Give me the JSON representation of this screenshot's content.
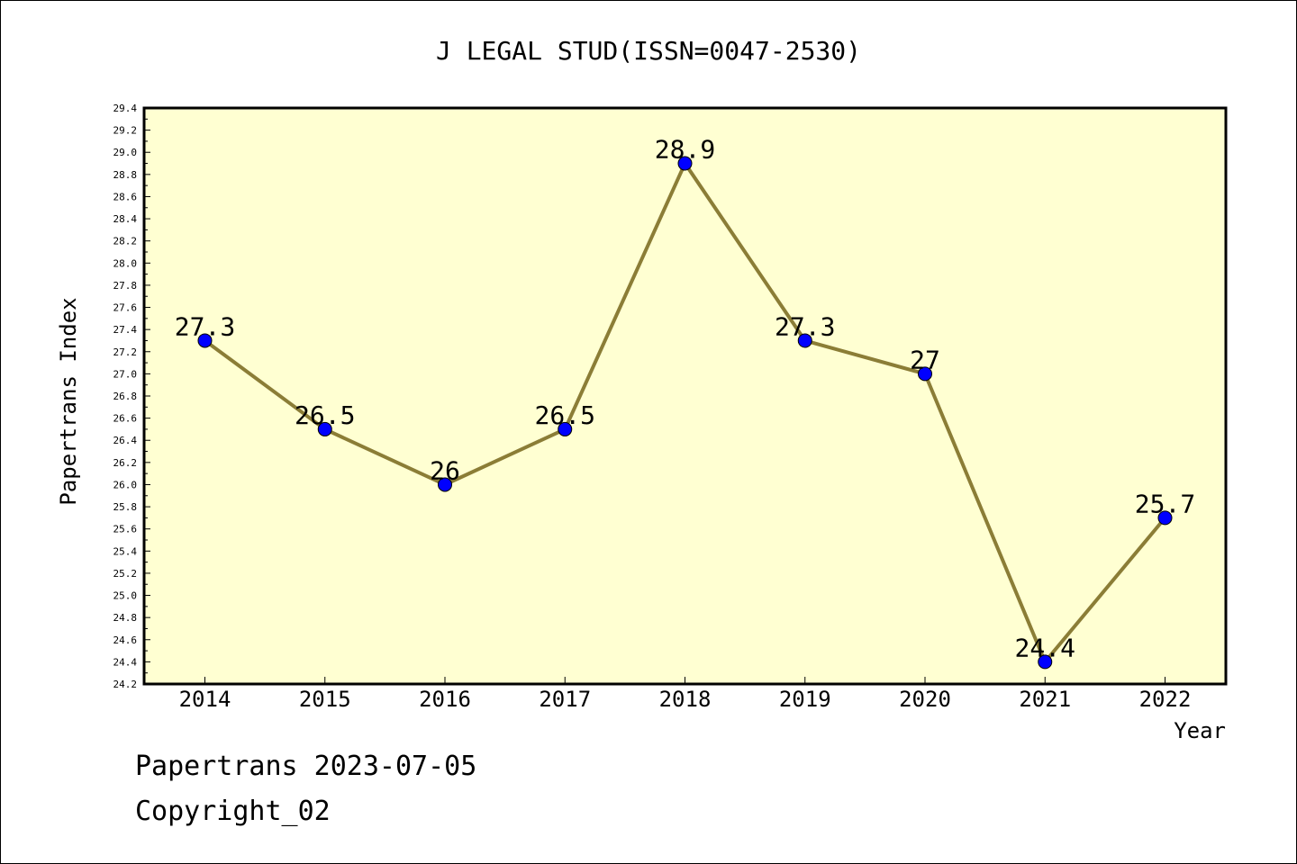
{
  "chart_data": {
    "type": "line",
    "title": "J LEGAL STUD(ISSN=0047-2530)",
    "xlabel": "Year",
    "ylabel": "Papertrans Index",
    "categories": [
      "2014",
      "2015",
      "2016",
      "2017",
      "2018",
      "2019",
      "2020",
      "2021",
      "2022"
    ],
    "series": [
      {
        "values": [
          27.3,
          26.5,
          26.0,
          26.5,
          28.9,
          27.3,
          27.0,
          24.4,
          25.7
        ],
        "data_labels": [
          "27.3",
          "26.5",
          "26",
          "26.5",
          "28.9",
          "27.3",
          "27",
          "24.4",
          "25.7"
        ]
      }
    ],
    "ylim": [
      24.2,
      29.4
    ],
    "yticks": [
      "24.2",
      "24.4",
      "24.6",
      "24.8",
      "25.0",
      "25.2",
      "25.4",
      "25.6",
      "25.8",
      "26.0",
      "26.2",
      "26.4",
      "26.6",
      "26.8",
      "27.0",
      "27.2",
      "27.4",
      "27.6",
      "27.8",
      "28.0",
      "28.2",
      "28.4",
      "28.6",
      "28.8",
      "29.0",
      "29.2",
      "29.4"
    ],
    "grid": false,
    "colors": {
      "plot_background": "#ffffd2",
      "line": "#8b7d36",
      "marker": "#0000ff"
    }
  },
  "footer": {
    "line1": "Papertrans 2023-07-05",
    "line2": "Copyright_02"
  }
}
